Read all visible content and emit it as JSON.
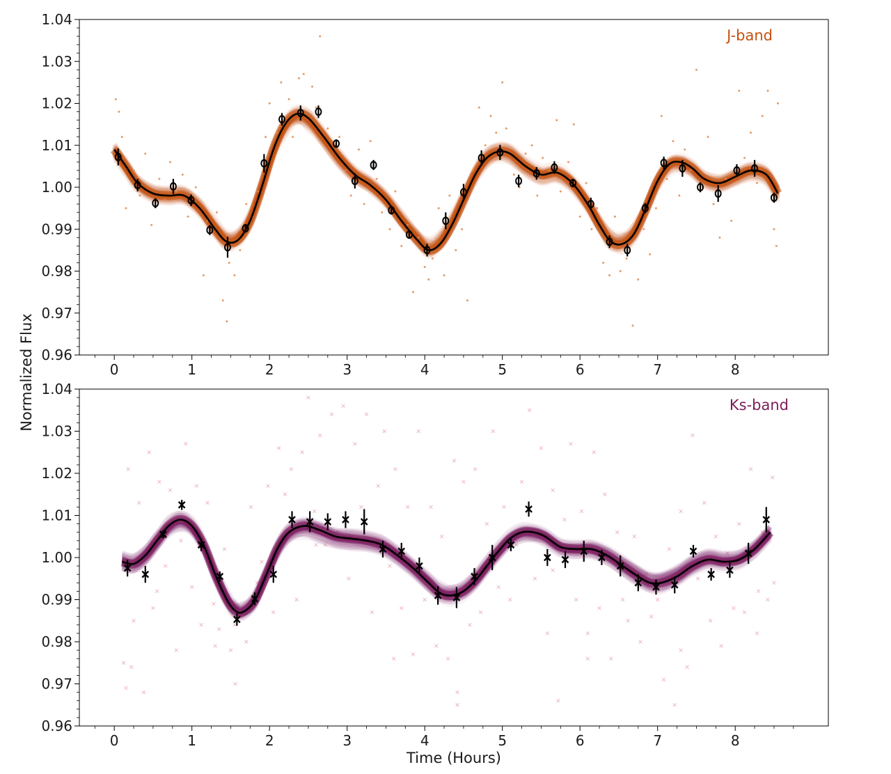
{
  "figure": {
    "ylabel": "Normalized Flux",
    "xlabel": "Time (Hours)"
  },
  "chart_data": [
    {
      "type": "scatter",
      "band_label": "J-band",
      "band_color": "#c4520e",
      "scatter_color": "#e08a4a",
      "xlim": [
        -0.45,
        9.2
      ],
      "ylim": [
        0.96,
        1.04
      ],
      "yticks": [
        "0.96",
        "0.97",
        "0.98",
        "0.99",
        "1.00",
        "1.01",
        "1.02",
        "1.03",
        "1.04"
      ],
      "xticks": [
        "0",
        "1",
        "2",
        "3",
        "4",
        "5",
        "6",
        "7",
        "8"
      ],
      "marker": "o",
      "model_curve": {
        "x": [
          0.0,
          0.15,
          0.3,
          0.5,
          0.7,
          0.9,
          1.1,
          1.3,
          1.45,
          1.6,
          1.75,
          1.9,
          2.05,
          2.2,
          2.35,
          2.5,
          2.7,
          2.9,
          3.1,
          3.3,
          3.5,
          3.7,
          3.9,
          4.05,
          4.2,
          4.35,
          4.5,
          4.65,
          4.8,
          4.95,
          5.1,
          5.3,
          5.5,
          5.7,
          5.9,
          6.1,
          6.25,
          6.4,
          6.55,
          6.7,
          6.85,
          7.0,
          7.15,
          7.3,
          7.45,
          7.6,
          7.8,
          8.0,
          8.2,
          8.4,
          8.55
        ],
        "y": [
          1.009,
          1.005,
          1.001,
          0.9985,
          0.998,
          0.998,
          0.995,
          0.99,
          0.987,
          0.9875,
          0.992,
          1.0,
          1.009,
          1.015,
          1.0175,
          1.0165,
          1.012,
          1.007,
          1.003,
          1.0005,
          0.997,
          0.992,
          0.9875,
          0.985,
          0.9865,
          0.991,
          0.997,
          1.003,
          1.007,
          1.0085,
          1.008,
          1.005,
          1.003,
          1.0035,
          1.001,
          0.996,
          0.991,
          0.987,
          0.9865,
          0.989,
          0.995,
          1.0015,
          1.0055,
          1.006,
          1.0045,
          1.002,
          1.001,
          1.0025,
          1.004,
          1.003,
          0.9985
        ]
      },
      "binned_points": {
        "x": [
          0.05,
          0.3,
          0.53,
          0.76,
          0.99,
          1.23,
          1.46,
          1.69,
          1.93,
          2.16,
          2.4,
          2.63,
          2.86,
          3.1,
          3.34,
          3.57,
          3.8,
          4.03,
          4.27,
          4.5,
          4.73,
          4.97,
          5.21,
          5.44,
          5.67,
          5.91,
          6.14,
          6.38,
          6.61,
          6.84,
          7.08,
          7.32,
          7.55,
          7.78,
          8.02,
          8.25,
          8.5
        ],
        "y": [
          1.0072,
          1.0005,
          0.9962,
          1.0002,
          0.9969,
          0.9898,
          0.9857,
          0.9902,
          1.0057,
          1.0162,
          1.0177,
          1.018,
          1.0104,
          1.0015,
          1.0053,
          0.9945,
          0.9887,
          0.985,
          0.992,
          0.9988,
          1.007,
          1.0083,
          1.0015,
          1.0033,
          1.0047,
          1.001,
          0.996,
          0.987,
          0.985,
          0.995,
          1.0058,
          1.0045,
          1.0,
          0.9985,
          1.004,
          1.0045,
          0.9975
        ],
        "yerr": [
          0.002,
          0.0015,
          0.0012,
          0.0018,
          0.0014,
          0.0012,
          0.0025,
          0.001,
          0.0022,
          0.0015,
          0.0018,
          0.0015,
          0.001,
          0.0018,
          0.0012,
          0.001,
          0.001,
          0.0015,
          0.002,
          0.002,
          0.0018,
          0.0018,
          0.0015,
          0.0015,
          0.0015,
          0.001,
          0.0015,
          0.0015,
          0.0015,
          0.0012,
          0.0015,
          0.002,
          0.0012,
          0.002,
          0.0015,
          0.002,
          0.0012
        ]
      },
      "raw_points": {
        "x": [
          0.02,
          0.06,
          0.1,
          0.15,
          0.25,
          0.33,
          0.4,
          0.48,
          0.58,
          0.65,
          0.72,
          0.8,
          0.88,
          0.95,
          1.05,
          1.15,
          1.2,
          1.32,
          1.4,
          1.45,
          1.48,
          1.55,
          1.62,
          1.7,
          1.78,
          1.85,
          1.95,
          2.0,
          2.1,
          2.15,
          2.25,
          2.3,
          2.38,
          2.44,
          2.55,
          2.6,
          2.65,
          2.75,
          2.82,
          2.9,
          2.98,
          3.05,
          3.15,
          3.22,
          3.3,
          3.38,
          3.45,
          3.55,
          3.62,
          3.7,
          3.78,
          3.85,
          3.92,
          4.0,
          4.05,
          4.1,
          4.18,
          4.25,
          4.32,
          4.4,
          4.48,
          4.55,
          4.62,
          4.7,
          4.78,
          4.85,
          4.92,
          5.0,
          5.05,
          5.15,
          5.22,
          5.3,
          5.38,
          5.45,
          5.52,
          5.6,
          5.7,
          5.75,
          5.85,
          5.92,
          6.0,
          6.08,
          6.15,
          6.22,
          6.3,
          6.38,
          6.45,
          6.52,
          6.6,
          6.68,
          6.75,
          6.82,
          6.9,
          6.98,
          7.05,
          7.12,
          7.2,
          7.28,
          7.35,
          7.42,
          7.5,
          7.58,
          7.65,
          7.72,
          7.8,
          7.88,
          7.95,
          8.05,
          8.12,
          8.2,
          8.28,
          8.35,
          8.42,
          8.5,
          8.55,
          8.53
        ],
        "y": [
          1.021,
          1.018,
          1.012,
          0.995,
          1.004,
          0.998,
          1.008,
          0.991,
          1.002,
          0.997,
          1.006,
          0.999,
          1.003,
          0.993,
          1.0,
          0.979,
          0.992,
          0.994,
          0.973,
          0.968,
          0.982,
          0.979,
          0.985,
          0.996,
          0.993,
          0.999,
          1.012,
          1.02,
          1.013,
          1.025,
          1.021,
          1.012,
          1.026,
          1.027,
          1.024,
          1.019,
          1.036,
          1.014,
          1.009,
          1.012,
          1.004,
          0.998,
          1.009,
          0.996,
          1.011,
          1.002,
          0.994,
          0.99,
          0.999,
          0.986,
          0.991,
          0.975,
          0.988,
          0.981,
          0.978,
          0.983,
          0.995,
          0.979,
          0.998,
          0.985,
          0.99,
          0.973,
          1.004,
          1.019,
          1.01,
          1.017,
          1.013,
          1.025,
          1.014,
          1.003,
          1.0,
          1.008,
          1.01,
          0.998,
          1.007,
          1.004,
          1.016,
          0.999,
          1.006,
          1.015,
          0.993,
          1.001,
          0.99,
          0.995,
          0.982,
          0.979,
          0.993,
          0.98,
          0.983,
          0.967,
          0.978,
          0.99,
          0.984,
          0.995,
          1.017,
          1.002,
          1.011,
          0.998,
          1.009,
          1.004,
          1.028,
          1.0,
          1.012,
          0.996,
          0.988,
          1.002,
          0.992,
          1.023,
          1.007,
          1.013,
          1.001,
          1.017,
          1.023,
          0.99,
          1.02,
          0.986
        ]
      }
    },
    {
      "type": "scatter",
      "band_label": "Ks-band",
      "band_color": "#7c1d5a",
      "scatter_color": "#e8a0b4",
      "xlim": [
        -0.45,
        9.2
      ],
      "ylim": [
        0.96,
        1.04
      ],
      "yticks": [
        "0.96",
        "0.97",
        "0.98",
        "0.99",
        "1.00",
        "1.01",
        "1.02",
        "1.03",
        "1.04"
      ],
      "xticks": [
        "0",
        "1",
        "2",
        "3",
        "4",
        "5",
        "6",
        "7",
        "8"
      ],
      "marker": "x",
      "model_curve": {
        "x": [
          0.1,
          0.25,
          0.4,
          0.55,
          0.7,
          0.85,
          1.0,
          1.15,
          1.3,
          1.45,
          1.55,
          1.65,
          1.8,
          1.95,
          2.1,
          2.25,
          2.45,
          2.65,
          2.85,
          3.05,
          3.25,
          3.45,
          3.65,
          3.85,
          4.05,
          4.2,
          4.35,
          4.5,
          4.65,
          4.8,
          4.95,
          5.1,
          5.25,
          5.4,
          5.55,
          5.75,
          5.95,
          6.15,
          6.35,
          6.55,
          6.75,
          6.9,
          7.05,
          7.25,
          7.45,
          7.65,
          7.85,
          8.05,
          8.25,
          8.45
        ],
        "y": [
          0.999,
          0.9985,
          1.0005,
          1.004,
          1.0075,
          1.009,
          1.0075,
          1.003,
          0.996,
          0.99,
          0.9875,
          0.987,
          0.9895,
          0.9955,
          1.002,
          1.006,
          1.0075,
          1.0065,
          1.005,
          1.0045,
          1.004,
          1.003,
          1.0005,
          0.9975,
          0.994,
          0.9915,
          0.991,
          0.992,
          0.9945,
          0.998,
          1.0015,
          1.0045,
          1.006,
          1.006,
          1.005,
          1.0025,
          1.002,
          1.002,
          1.0005,
          0.998,
          0.9955,
          0.994,
          0.994,
          0.9955,
          0.998,
          0.9995,
          0.999,
          0.9995,
          1.002,
          1.006
        ]
      },
      "binned_points": {
        "x": [
          0.17,
          0.4,
          0.63,
          0.87,
          1.12,
          1.36,
          1.58,
          1.81,
          2.05,
          2.29,
          2.52,
          2.75,
          2.98,
          3.22,
          3.46,
          3.7,
          3.93,
          4.17,
          4.41,
          4.64,
          4.87,
          5.11,
          5.34,
          5.58,
          5.81,
          6.05,
          6.28,
          6.52,
          6.75,
          6.98,
          7.22,
          7.46,
          7.69,
          7.93,
          8.17,
          8.4
        ],
        "y": [
          0.9975,
          0.996,
          1.0055,
          1.0125,
          1.003,
          0.9955,
          0.9853,
          0.9902,
          0.996,
          1.009,
          1.0085,
          1.0085,
          1.009,
          1.0085,
          1.002,
          1.0015,
          0.998,
          0.991,
          0.9905,
          0.9955,
          1.0,
          1.003,
          1.0115,
          1.0,
          0.9995,
          1.0015,
          1.0,
          0.998,
          0.994,
          0.993,
          0.9935,
          1.0015,
          0.996,
          0.997,
          1.001,
          1.009
        ],
        "yerr": [
          0.002,
          0.002,
          0.001,
          0.0012,
          0.0015,
          0.0012,
          0.0015,
          0.0015,
          0.002,
          0.002,
          0.0025,
          0.002,
          0.002,
          0.003,
          0.002,
          0.002,
          0.002,
          0.0022,
          0.0025,
          0.002,
          0.003,
          0.0015,
          0.0018,
          0.002,
          0.002,
          0.0025,
          0.0018,
          0.0025,
          0.002,
          0.0018,
          0.002,
          0.0015,
          0.0015,
          0.0018,
          0.0025,
          0.003
        ]
      },
      "raw_points": {
        "x": [
          0.12,
          0.18,
          0.25,
          0.32,
          0.38,
          0.45,
          0.5,
          0.58,
          0.66,
          0.72,
          0.8,
          0.86,
          0.92,
          1.0,
          1.06,
          1.12,
          1.2,
          1.28,
          1.35,
          1.42,
          1.5,
          1.56,
          1.62,
          1.7,
          1.76,
          1.84,
          1.9,
          1.98,
          2.05,
          2.12,
          2.2,
          2.28,
          2.35,
          2.42,
          2.5,
          2.58,
          2.65,
          2.72,
          2.8,
          2.88,
          2.95,
          3.02,
          3.1,
          3.18,
          3.25,
          3.32,
          3.4,
          3.48,
          3.55,
          3.62,
          3.7,
          3.78,
          3.85,
          3.92,
          4.0,
          4.08,
          4.15,
          4.22,
          4.3,
          4.38,
          4.42,
          4.5,
          4.58,
          4.65,
          4.72,
          4.8,
          4.88,
          4.95,
          5.02,
          5.1,
          5.18,
          5.25,
          5.35,
          5.42,
          5.5,
          5.58,
          5.65,
          5.72,
          5.8,
          5.88,
          5.95,
          6.02,
          6.1,
          6.18,
          6.25,
          6.32,
          6.4,
          6.48,
          6.55,
          6.62,
          6.7,
          6.78,
          6.85,
          6.92,
          7.0,
          7.08,
          7.15,
          7.22,
          7.3,
          7.38,
          7.45,
          7.52,
          7.6,
          7.68,
          7.75,
          7.82,
          7.9,
          7.98,
          8.05,
          8.12,
          8.2,
          8.28,
          8.35,
          8.42,
          8.48,
          8.5,
          0.15,
          0.22,
          0.4,
          0.55,
          1.3,
          1.55,
          2.6,
          3.05,
          3.6,
          4.42,
          5.65,
          6.1,
          7.3,
          8.3
        ],
        "y": [
          0.975,
          1.021,
          0.985,
          1.013,
          0.968,
          1.025,
          0.988,
          1.018,
          0.998,
          1.016,
          0.978,
          1.004,
          1.027,
          0.993,
          1.017,
          0.984,
          1.013,
          0.989,
          0.983,
          1.002,
          0.978,
          0.97,
          0.986,
          0.98,
          1.012,
          0.994,
          0.999,
          1.017,
          0.987,
          1.026,
          1.015,
          1.021,
          0.99,
          1.025,
          1.038,
          1.011,
          1.029,
          1.003,
          1.034,
          1.006,
          1.036,
          0.995,
          1.027,
          1.012,
          1.034,
          0.987,
          1.017,
          1.03,
          0.998,
          1.021,
          0.988,
          1.012,
          0.977,
          1.03,
          0.99,
          1.012,
          0.979,
          1.005,
          0.976,
          1.023,
          0.965,
          1.018,
          0.984,
          1.021,
          0.987,
          1.008,
          1.03,
          0.993,
          1.012,
          0.99,
          1.003,
          1.018,
          1.035,
          0.995,
          1.026,
          0.982,
          1.016,
          0.966,
          1.009,
          1.027,
          0.99,
          1.011,
          0.976,
          1.025,
          0.988,
          1.015,
          0.976,
          1.006,
          0.99,
          0.985,
          1.005,
          0.98,
          0.996,
          0.986,
          0.99,
          0.971,
          1.002,
          0.965,
          1.011,
          0.974,
          1.029,
          0.995,
          1.013,
          0.985,
          1.005,
          0.979,
          1.001,
          0.988,
          1.008,
          0.987,
          1.021,
          0.982,
          1.006,
          0.99,
          1.019,
          0.994,
          0.969,
          0.974,
          0.996,
          0.992,
          0.979,
          0.984,
          1.003,
          1.005,
          0.976,
          0.968,
          0.997,
          0.982,
          0.978,
          0.992
        ]
      }
    }
  ]
}
